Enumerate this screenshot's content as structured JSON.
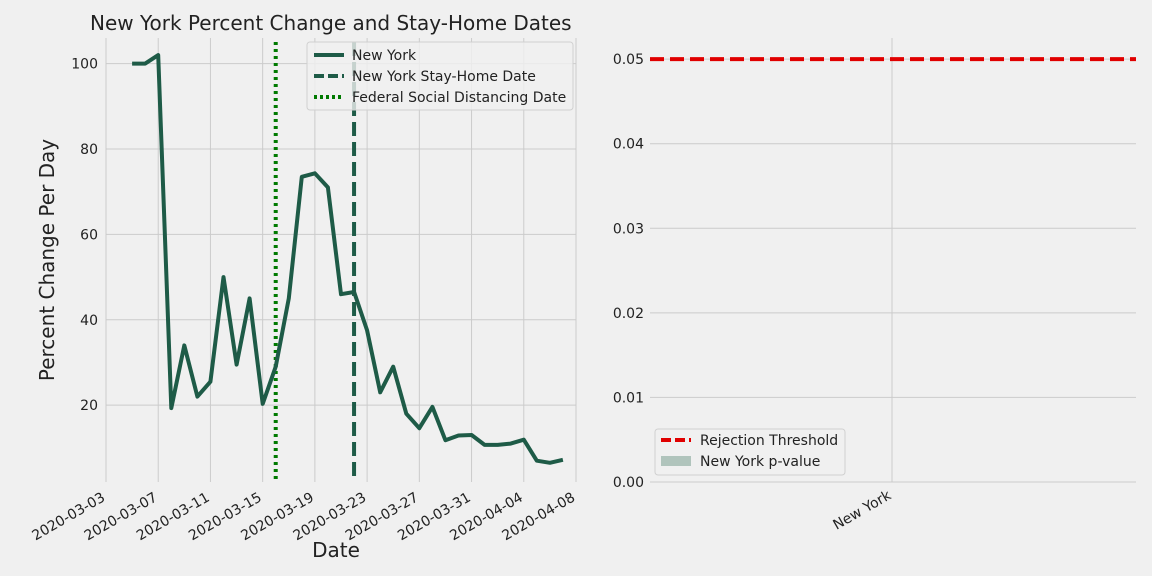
{
  "chart_data": [
    {
      "type": "line",
      "title": "New York Percent Change and Stay-Home Dates",
      "xlabel": "Date",
      "ylabel": "Percent Change Per Day",
      "xlim": [
        "2020-03-03",
        "2020-04-08"
      ],
      "ylim": [
        2,
        106
      ],
      "x_ticks": [
        "2020-03-03",
        "2020-03-07",
        "2020-03-11",
        "2020-03-15",
        "2020-03-19",
        "2020-03-23",
        "2020-03-27",
        "2020-03-31",
        "2020-04-04",
        "2020-04-08"
      ],
      "y_ticks": [
        20,
        40,
        60,
        80,
        100
      ],
      "grid": true,
      "legend_position": "top-right",
      "series": [
        {
          "name": "New York",
          "color": "#1e5b47",
          "style": "solid",
          "points": [
            [
              "2020-03-05",
              100
            ],
            [
              "2020-03-06",
              100
            ],
            [
              "2020-03-07",
              102
            ],
            [
              "2020-03-08",
              19.3
            ],
            [
              "2020-03-09",
              34
            ],
            [
              "2020-03-10",
              22
            ],
            [
              "2020-03-11",
              25.5
            ],
            [
              "2020-03-12",
              50
            ],
            [
              "2020-03-13",
              29.5
            ],
            [
              "2020-03-14",
              45
            ],
            [
              "2020-03-15",
              20.3
            ],
            [
              "2020-03-16",
              29
            ],
            [
              "2020-03-17",
              45
            ],
            [
              "2020-03-18",
              73.5
            ],
            [
              "2020-03-19",
              74.3
            ],
            [
              "2020-03-20",
              71
            ],
            [
              "2020-03-21",
              46
            ],
            [
              "2020-03-22",
              46.5
            ],
            [
              "2020-03-23",
              37.5
            ],
            [
              "2020-03-24",
              23
            ],
            [
              "2020-03-25",
              29
            ],
            [
              "2020-03-26",
              18
            ],
            [
              "2020-03-27",
              14.6
            ],
            [
              "2020-03-28",
              19.6
            ],
            [
              "2020-03-29",
              11.8
            ],
            [
              "2020-03-30",
              12.9
            ],
            [
              "2020-03-31",
              13
            ],
            [
              "2020-04-01",
              10.7
            ],
            [
              "2020-04-02",
              10.7
            ],
            [
              "2020-04-03",
              11
            ],
            [
              "2020-04-04",
              11.9
            ],
            [
              "2020-04-05",
              7
            ],
            [
              "2020-04-06",
              6.5
            ],
            [
              "2020-04-07",
              7.2
            ]
          ]
        }
      ],
      "vlines": [
        {
          "name": "New York Stay-Home Date",
          "x": "2020-03-22",
          "color": "#1e5b47",
          "style": "dashed"
        },
        {
          "name": "Federal Social Distancing Date",
          "x": "2020-03-16",
          "color": "#007a00",
          "style": "dotted"
        }
      ]
    },
    {
      "type": "bar",
      "categories": [
        "New York"
      ],
      "series": [
        {
          "name": "New York p-value",
          "values": [
            0
          ],
          "color": "#b0c4bc"
        }
      ],
      "hlines": [
        {
          "name": "Rejection Threshold",
          "y": 0.05,
          "color": "#e00000",
          "style": "dashed"
        }
      ],
      "ylim": [
        0,
        0.0525
      ],
      "y_ticks": [
        "0.00",
        "0.01",
        "0.02",
        "0.03",
        "0.04",
        "0.05"
      ],
      "grid": true,
      "legend_position": "bottom-left"
    }
  ]
}
